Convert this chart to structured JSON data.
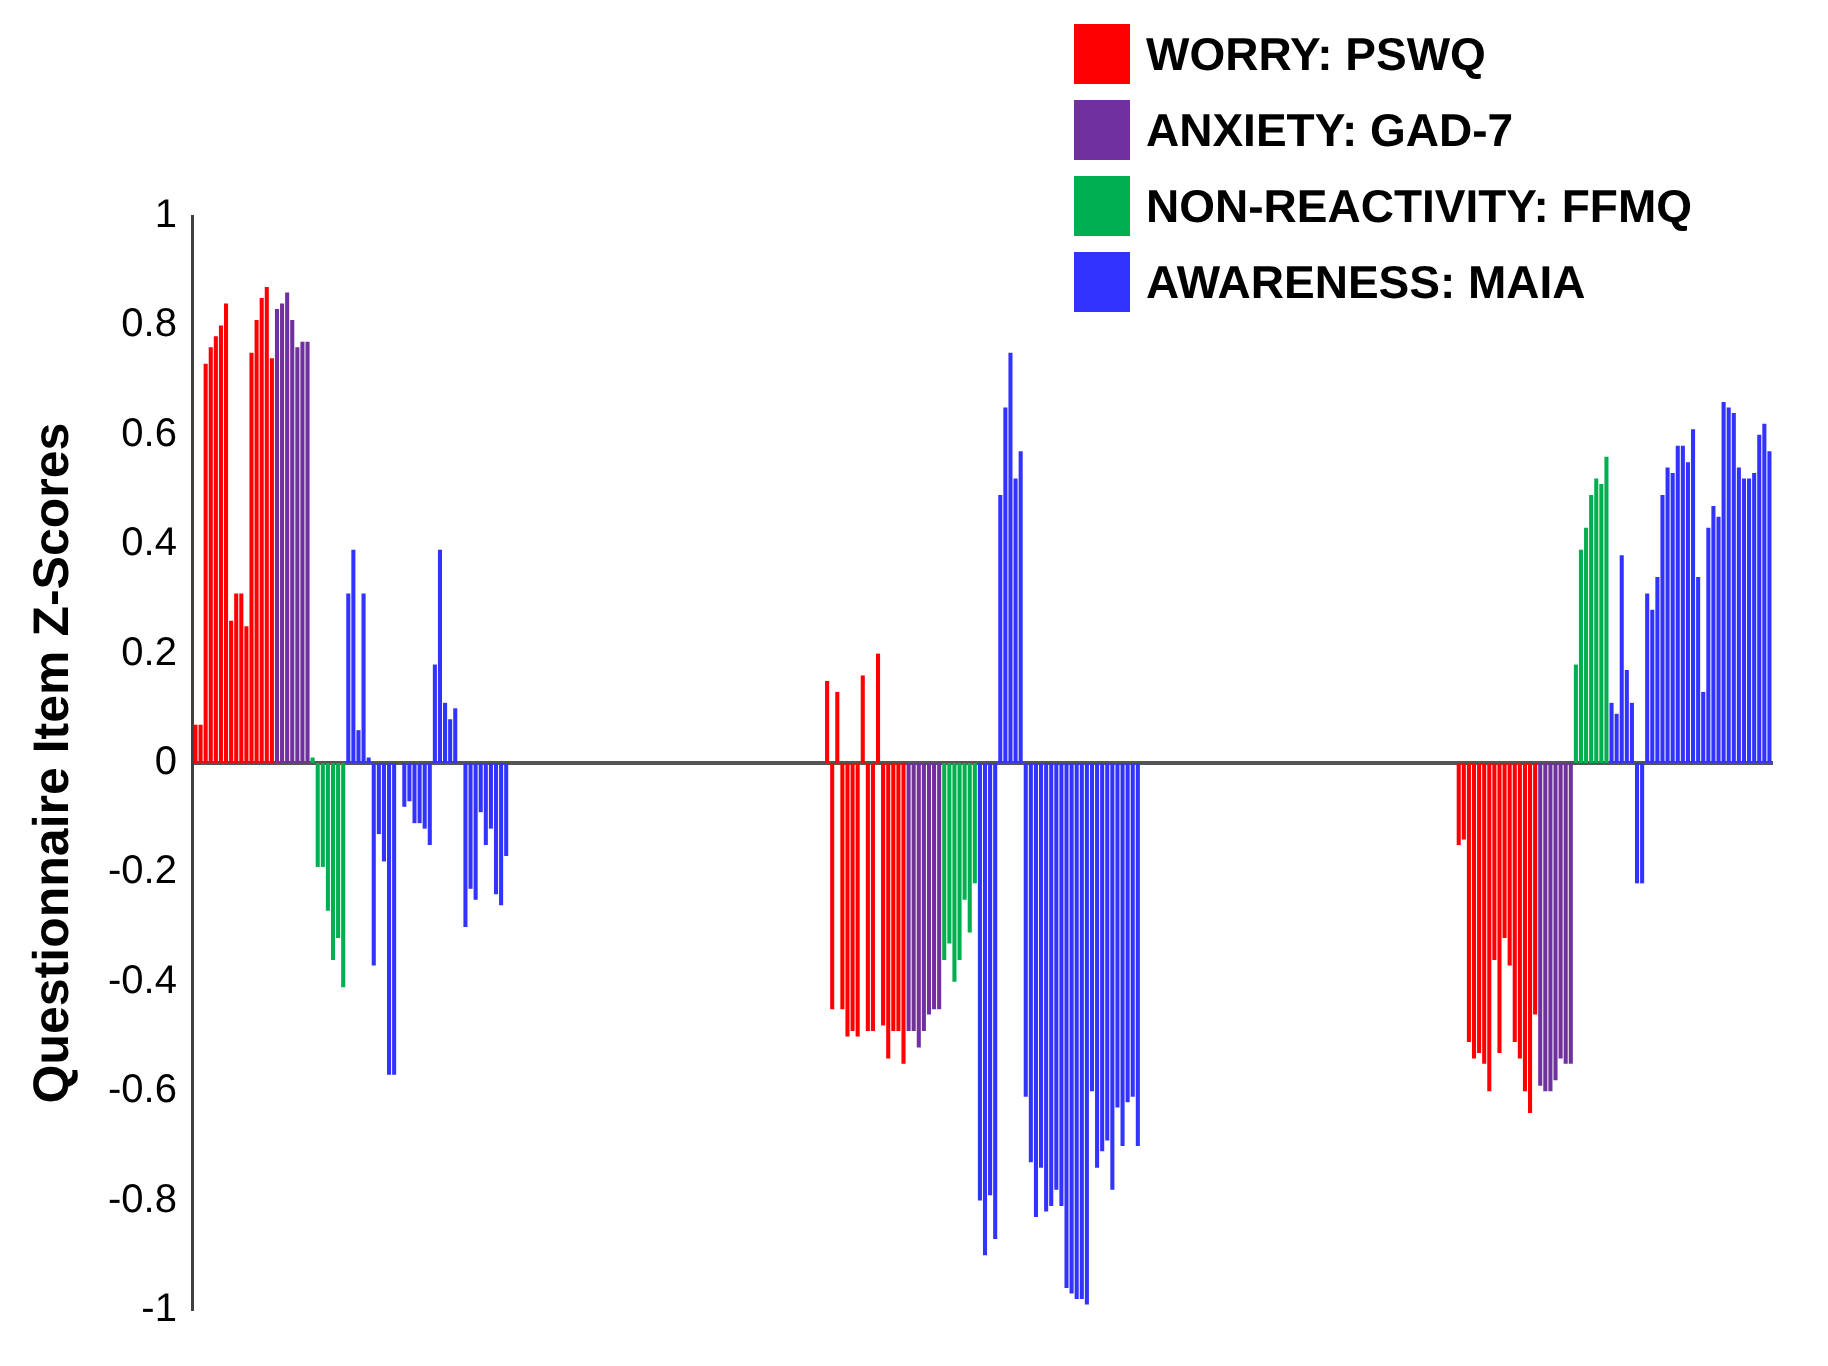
{
  "chart_data": {
    "type": "bar",
    "ylabel": "Questionnaire Item Z-Scores",
    "legend": "top right",
    "ylim": [
      -1,
      1
    ],
    "yticks": [
      -1,
      -0.8,
      -0.6,
      -0.4,
      -0.2,
      0,
      0.2,
      0.4,
      0.6,
      0.8,
      1
    ],
    "categories": [
      null,
      null,
      null,
      null,
      null,
      null,
      null,
      null,
      null,
      null,
      null,
      null,
      null,
      null,
      null,
      null,
      null,
      null,
      null,
      null,
      null,
      null,
      null,
      null,
      null,
      null,
      null,
      null,
      null,
      null,
      null,
      null,
      null,
      null,
      null,
      null,
      null,
      null,
      null,
      null,
      null,
      null,
      null,
      null,
      null,
      null,
      null,
      null,
      null,
      null,
      null,
      null,
      null,
      null,
      null,
      null,
      null,
      null,
      null,
      null,
      null,
      null,
      null,
      null,
      null,
      null,
      null,
      null,
      null,
      null,
      null,
      null,
      null,
      null,
      null,
      null,
      null,
      null,
      null,
      null,
      null,
      null,
      null,
      null,
      null,
      null,
      null,
      null,
      null,
      null,
      null,
      null,
      null,
      null,
      null,
      null,
      null,
      null,
      null,
      null,
      null,
      null,
      null,
      null,
      null,
      null,
      null,
      null,
      null,
      null,
      null,
      null,
      null,
      null,
      null,
      null,
      null,
      null,
      null,
      null,
      null,
      null,
      null,
      null,
      null,
      null,
      null,
      null,
      null,
      null,
      null,
      null,
      null,
      null,
      null,
      null,
      null,
      null,
      null,
      null,
      null,
      null,
      null,
      null,
      null,
      null,
      null,
      null,
      null,
      null,
      null,
      null,
      null,
      null,
      null,
      null,
      null,
      null,
      null,
      null,
      null,
      null,
      null,
      null,
      null,
      null,
      null,
      null,
      null,
      null,
      null,
      null,
      null,
      null,
      null,
      null,
      null,
      null,
      null,
      null,
      null,
      null,
      null,
      null,
      null,
      null,
      null,
      null,
      null,
      null,
      null,
      null,
      null,
      null,
      null,
      null,
      null,
      null,
      null,
      null,
      null,
      null,
      null,
      null,
      null,
      null,
      null,
      null,
      null,
      null,
      null,
      null,
      null,
      null,
      null,
      null,
      null,
      null,
      null,
      null,
      null,
      null,
      null,
      null,
      null,
      null,
      null,
      null,
      null,
      null,
      null,
      null,
      null,
      null,
      null,
      null,
      null,
      null,
      null,
      null,
      null,
      null,
      null,
      null,
      null,
      null,
      null,
      null,
      null,
      null,
      null,
      null,
      null,
      null,
      null,
      null,
      null,
      null,
      null,
      null,
      null,
      null,
      null,
      null,
      null,
      null,
      null,
      null,
      null,
      null,
      null,
      null,
      null,
      null,
      null,
      null,
      null,
      null,
      null,
      null,
      null,
      null,
      null,
      null,
      null,
      null,
      null,
      null,
      null,
      null,
      null,
      null,
      null,
      null,
      null,
      null,
      null,
      null,
      null,
      null,
      null,
      null,
      null,
      null,
      null,
      null,
      null,
      null,
      null,
      null
    ],
    "series": [
      {
        "name": "WORRY: PSWQ",
        "color": "#ff0000",
        "values": [
          0.07,
          0.07,
          0.73,
          0.76,
          0.78,
          0.8,
          0.84,
          0.26,
          0.31,
          0.31,
          0.25,
          0.75,
          0.81,
          0.85,
          0.87,
          0.74,
          null,
          null,
          null,
          null,
          null,
          null,
          null,
          null,
          null,
          null,
          null,
          null,
          null,
          null,
          null,
          null,
          null,
          null,
          null,
          null,
          null,
          null,
          null,
          null,
          null,
          null,
          null,
          null,
          null,
          null,
          null,
          null,
          null,
          null,
          null,
          null,
          null,
          null,
          null,
          null,
          null,
          null,
          null,
          null,
          null,
          null,
          null,
          null,
          null,
          null,
          null,
          null,
          null,
          null,
          null,
          null,
          null,
          null,
          null,
          null,
          null,
          null,
          null,
          null,
          null,
          null,
          null,
          null,
          null,
          null,
          null,
          null,
          null,
          null,
          null,
          null,
          null,
          null,
          null,
          null,
          null,
          null,
          null,
          null,
          null,
          null,
          null,
          null,
          null,
          null,
          null,
          null,
          null,
          null,
          null,
          null,
          null,
          null,
          null,
          null,
          null,
          null,
          null,
          null,
          null,
          null,
          null,
          null,
          0.15,
          -0.45,
          0.13,
          -0.45,
          -0.5,
          -0.49,
          -0.5,
          0.16,
          -0.49,
          -0.49,
          0.2,
          -0.48,
          -0.54,
          -0.49,
          -0.49,
          -0.55,
          null,
          null,
          null,
          null,
          null,
          null,
          null,
          null,
          null,
          null,
          null,
          null,
          null,
          null,
          null,
          null,
          null,
          null,
          null,
          null,
          null,
          null,
          null,
          null,
          null,
          null,
          null,
          null,
          null,
          null,
          null,
          null,
          null,
          null,
          null,
          null,
          null,
          null,
          null,
          null,
          null,
          null,
          null,
          null,
          null,
          null,
          null,
          null,
          null,
          null,
          null,
          null,
          null,
          null,
          null,
          null,
          null,
          null,
          null,
          null,
          null,
          null,
          null,
          null,
          null,
          null,
          null,
          null,
          null,
          null,
          null,
          null,
          null,
          null,
          null,
          null,
          null,
          null,
          null,
          null,
          null,
          null,
          null,
          null,
          null,
          null,
          null,
          null,
          null,
          null,
          null,
          null,
          null,
          null,
          null,
          null,
          null,
          null,
          null,
          null,
          null,
          null,
          null,
          null,
          null,
          null,
          null,
          null,
          -0.15,
          -0.14,
          -0.51,
          -0.54,
          -0.53,
          -0.55,
          -0.6,
          -0.36,
          -0.53,
          -0.32,
          -0.37,
          -0.51,
          -0.54,
          -0.6,
          -0.64,
          -0.46,
          null,
          null,
          null,
          null,
          null,
          null,
          null,
          null,
          null,
          null,
          null,
          null,
          null,
          null,
          null,
          null,
          null,
          null,
          null,
          null,
          null,
          null,
          null,
          null,
          null,
          null,
          null,
          null,
          null,
          null,
          null,
          null,
          null,
          null,
          null,
          null,
          null,
          null,
          null,
          null,
          null,
          null,
          null,
          null,
          null,
          null
        ]
      },
      {
        "name": "ANXIETY: GAD-7",
        "color": "#7030a0",
        "values": [
          null,
          null,
          null,
          null,
          null,
          null,
          null,
          null,
          null,
          null,
          null,
          null,
          null,
          null,
          null,
          null,
          0.83,
          0.84,
          0.86,
          0.81,
          0.76,
          0.77,
          0.77,
          null,
          null,
          null,
          null,
          null,
          null,
          null,
          null,
          null,
          null,
          null,
          null,
          null,
          null,
          null,
          null,
          null,
          null,
          null,
          null,
          null,
          null,
          null,
          null,
          null,
          null,
          null,
          null,
          null,
          null,
          null,
          null,
          null,
          null,
          null,
          null,
          null,
          null,
          null,
          null,
          null,
          null,
          null,
          null,
          null,
          null,
          null,
          null,
          null,
          null,
          null,
          null,
          null,
          null,
          null,
          null,
          null,
          null,
          null,
          null,
          null,
          null,
          null,
          null,
          null,
          null,
          null,
          null,
          null,
          null,
          null,
          null,
          null,
          null,
          null,
          null,
          null,
          null,
          null,
          null,
          null,
          null,
          null,
          null,
          null,
          null,
          null,
          null,
          null,
          null,
          null,
          null,
          null,
          null,
          null,
          null,
          null,
          null,
          null,
          null,
          null,
          null,
          null,
          null,
          null,
          null,
          null,
          null,
          null,
          null,
          null,
          null,
          null,
          null,
          null,
          null,
          null,
          -0.49,
          -0.49,
          -0.52,
          -0.49,
          -0.46,
          -0.45,
          -0.45,
          null,
          null,
          null,
          null,
          null,
          null,
          null,
          null,
          null,
          null,
          null,
          null,
          null,
          null,
          null,
          null,
          null,
          null,
          null,
          null,
          null,
          null,
          null,
          null,
          null,
          null,
          null,
          null,
          null,
          null,
          null,
          null,
          null,
          null,
          null,
          null,
          null,
          null,
          null,
          null,
          null,
          null,
          null,
          null,
          null,
          null,
          null,
          null,
          null,
          null,
          null,
          null,
          null,
          null,
          null,
          null,
          null,
          null,
          null,
          null,
          null,
          null,
          null,
          null,
          null,
          null,
          null,
          null,
          null,
          null,
          null,
          null,
          null,
          null,
          null,
          null,
          null,
          null,
          null,
          null,
          null,
          null,
          null,
          null,
          null,
          null,
          null,
          null,
          null,
          null,
          null,
          null,
          null,
          null,
          null,
          null,
          null,
          null,
          null,
          null,
          null,
          null,
          null,
          null,
          null,
          null,
          null,
          null,
          null,
          null,
          null,
          null,
          null,
          null,
          null,
          null,
          null,
          -0.59,
          -0.6,
          -0.6,
          -0.58,
          -0.54,
          -0.55,
          -0.55,
          null,
          null,
          null,
          null,
          null,
          null,
          null,
          null,
          null,
          null,
          null,
          null,
          null,
          null,
          null,
          null,
          null,
          null,
          null,
          null,
          null,
          null,
          null,
          null,
          null,
          null,
          null,
          null,
          null,
          null,
          null,
          null,
          null,
          null,
          null,
          null,
          null,
          null,
          null
        ]
      },
      {
        "name": "NON-REACTIVITY: FFMQ",
        "color": "#00b050",
        "values": [
          null,
          null,
          null,
          null,
          null,
          null,
          null,
          null,
          null,
          null,
          null,
          null,
          null,
          null,
          null,
          null,
          null,
          null,
          null,
          null,
          null,
          null,
          null,
          0.01,
          -0.19,
          -0.19,
          -0.27,
          -0.36,
          -0.32,
          -0.41,
          null,
          null,
          null,
          null,
          null,
          null,
          null,
          null,
          null,
          null,
          null,
          null,
          null,
          null,
          null,
          null,
          null,
          null,
          null,
          null,
          null,
          null,
          null,
          null,
          null,
          null,
          null,
          null,
          null,
          null,
          null,
          null,
          null,
          null,
          null,
          null,
          null,
          null,
          null,
          null,
          null,
          null,
          null,
          null,
          null,
          null,
          null,
          null,
          null,
          null,
          null,
          null,
          null,
          null,
          null,
          null,
          null,
          null,
          null,
          null,
          null,
          null,
          null,
          null,
          null,
          null,
          null,
          null,
          null,
          null,
          null,
          null,
          null,
          null,
          null,
          null,
          null,
          null,
          null,
          null,
          null,
          null,
          null,
          null,
          null,
          null,
          null,
          null,
          null,
          null,
          null,
          null,
          null,
          null,
          null,
          null,
          null,
          null,
          null,
          null,
          null,
          null,
          null,
          null,
          null,
          null,
          null,
          null,
          null,
          null,
          null,
          null,
          null,
          null,
          null,
          null,
          null,
          -0.36,
          -0.33,
          -0.4,
          -0.36,
          -0.25,
          -0.31,
          -0.22,
          null,
          null,
          null,
          null,
          null,
          null,
          null,
          null,
          null,
          null,
          null,
          null,
          null,
          null,
          null,
          null,
          null,
          null,
          null,
          null,
          null,
          null,
          null,
          null,
          null,
          null,
          null,
          null,
          null,
          null,
          null,
          null,
          null,
          null,
          null,
          null,
          null,
          null,
          null,
          null,
          null,
          null,
          null,
          null,
          null,
          null,
          null,
          null,
          null,
          null,
          null,
          null,
          null,
          null,
          null,
          null,
          null,
          null,
          null,
          null,
          null,
          null,
          null,
          null,
          null,
          null,
          null,
          null,
          null,
          null,
          null,
          null,
          null,
          null,
          null,
          null,
          null,
          null,
          null,
          null,
          null,
          null,
          null,
          null,
          null,
          null,
          null,
          null,
          null,
          null,
          null,
          null,
          null,
          null,
          null,
          null,
          null,
          null,
          null,
          null,
          null,
          null,
          null,
          null,
          null,
          null,
          null,
          null,
          null,
          null,
          null,
          null,
          null,
          null,
          null,
          null,
          null,
          0.18,
          0.39,
          0.43,
          0.49,
          0.52,
          0.51,
          0.56,
          null,
          null,
          null,
          null,
          null,
          null,
          null,
          null,
          null,
          null,
          null,
          null,
          null,
          null,
          null,
          null,
          null,
          null,
          null,
          null,
          null,
          null,
          null,
          null,
          null,
          null,
          null,
          null,
          null,
          null,
          null,
          null
        ]
      },
      {
        "name": "AWARENESS: MAIA",
        "color": "#3333ff",
        "values": [
          null,
          null,
          null,
          null,
          null,
          null,
          null,
          null,
          null,
          null,
          null,
          null,
          null,
          null,
          null,
          null,
          null,
          null,
          null,
          null,
          null,
          null,
          null,
          null,
          null,
          null,
          null,
          null,
          null,
          null,
          0.31,
          0.39,
          0.06,
          0.31,
          0.01,
          -0.37,
          -0.13,
          -0.18,
          -0.57,
          -0.57,
          0,
          -0.08,
          -0.07,
          -0.11,
          -0.11,
          -0.12,
          -0.15,
          0.18,
          0.39,
          0.11,
          0.08,
          0.1,
          0,
          -0.3,
          -0.23,
          -0.25,
          -0.09,
          -0.15,
          -0.12,
          -0.24,
          -0.26,
          -0.17,
          null,
          null,
          null,
          null,
          null,
          null,
          null,
          null,
          null,
          null,
          null,
          null,
          null,
          null,
          null,
          null,
          null,
          null,
          null,
          null,
          null,
          null,
          null,
          null,
          null,
          null,
          null,
          null,
          null,
          null,
          null,
          null,
          null,
          null,
          null,
          null,
          null,
          null,
          null,
          null,
          null,
          null,
          null,
          null,
          null,
          null,
          null,
          null,
          null,
          null,
          null,
          null,
          null,
          null,
          null,
          null,
          null,
          null,
          null,
          null,
          null,
          null,
          null,
          null,
          null,
          null,
          null,
          null,
          null,
          null,
          null,
          null,
          null,
          null,
          null,
          null,
          null,
          null,
          null,
          null,
          null,
          null,
          null,
          null,
          null,
          null,
          null,
          null,
          null,
          null,
          null,
          null,
          -0.8,
          -0.9,
          -0.79,
          -0.87,
          0.49,
          0.65,
          0.75,
          0.52,
          0.57,
          -0.61,
          -0.73,
          -0.83,
          -0.74,
          -0.82,
          -0.81,
          -0.78,
          -0.81,
          -0.96,
          -0.97,
          -0.98,
          -0.98,
          -0.99,
          -0.6,
          -0.74,
          -0.71,
          -0.69,
          -0.78,
          -0.63,
          -0.7,
          -0.62,
          -0.61,
          -0.7,
          null,
          null,
          null,
          null,
          null,
          null,
          null,
          null,
          null,
          null,
          null,
          null,
          null,
          null,
          null,
          null,
          null,
          null,
          null,
          null,
          null,
          null,
          null,
          null,
          null,
          null,
          null,
          null,
          null,
          null,
          null,
          null,
          null,
          null,
          null,
          null,
          null,
          null,
          null,
          null,
          null,
          null,
          null,
          null,
          null,
          null,
          null,
          null,
          null,
          null,
          null,
          null,
          null,
          null,
          null,
          null,
          null,
          null,
          null,
          null,
          null,
          null,
          null,
          null,
          null,
          null,
          null,
          null,
          null,
          null,
          null,
          null,
          null,
          null,
          null,
          null,
          null,
          null,
          null,
          null,
          null,
          null,
          null,
          null,
          null,
          null,
          null,
          null,
          null,
          null,
          null,
          null,
          0.11,
          0.09,
          0.38,
          0.17,
          0.11,
          -0.22,
          -0.22,
          0.31,
          0.28,
          0.34,
          0.49,
          0.54,
          0.53,
          0.58,
          0.58,
          0.55,
          0.61,
          0.34,
          0.13,
          0.43,
          0.47,
          0.45,
          0.66,
          0.65,
          0.64,
          0.54,
          0.52,
          0.52,
          0.53,
          0.6,
          0.62,
          0.57
        ]
      }
    ]
  }
}
